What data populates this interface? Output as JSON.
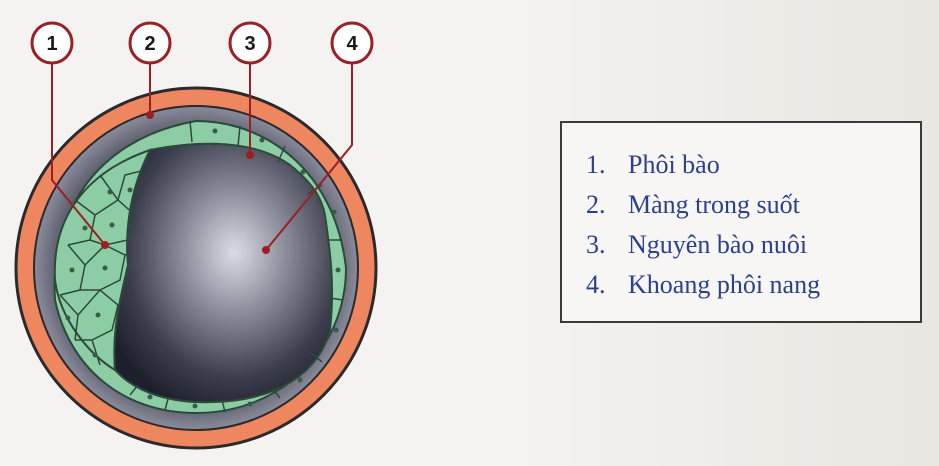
{
  "callouts": [
    {
      "number": "1"
    },
    {
      "number": "2"
    },
    {
      "number": "3"
    },
    {
      "number": "4"
    }
  ],
  "legend": {
    "items": [
      {
        "number": "1.",
        "label": "Phôi bào"
      },
      {
        "number": "2.",
        "label": "Màng trong suốt"
      },
      {
        "number": "3.",
        "label": "Nguyên bào nuôi"
      },
      {
        "number": "4.",
        "label": "Khoang phôi nang"
      }
    ]
  },
  "colors": {
    "zona": "#ee8760",
    "outer-space": "#6b6e7d",
    "cells": "#8ccda6",
    "cavity": "#1e1f2c",
    "callout-ring": "#9b1f25",
    "legend-text": "#2b3f8f"
  }
}
